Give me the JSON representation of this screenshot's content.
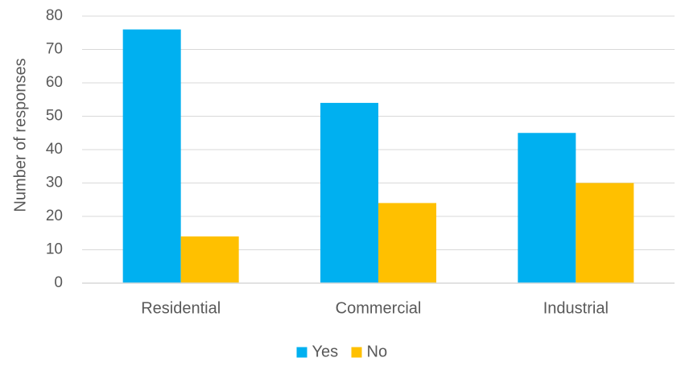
{
  "chart_data": {
    "type": "bar",
    "title": "",
    "xlabel": "",
    "ylabel": "Number of responses",
    "ylim": [
      0,
      80
    ],
    "yticks": [
      0,
      10,
      20,
      30,
      40,
      50,
      60,
      70,
      80
    ],
    "grid": true,
    "legend_position": "bottom",
    "categories": [
      "Residential",
      "Commercial",
      "Industrial"
    ],
    "series": [
      {
        "name": "Yes",
        "color": "#00B0F0",
        "values": [
          76,
          54,
          45
        ]
      },
      {
        "name": "No",
        "color": "#FFC000",
        "values": [
          14,
          24,
          30
        ]
      }
    ]
  }
}
